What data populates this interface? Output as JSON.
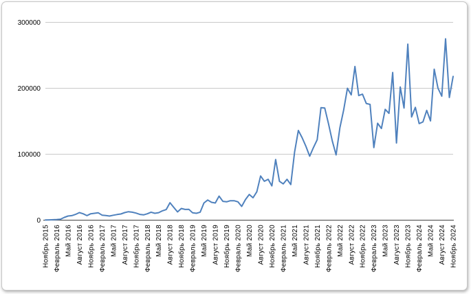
{
  "chart_data": {
    "type": "line",
    "title": "",
    "legend": null,
    "grid": true,
    "x_axis": {
      "tick_month_step": 3,
      "range": "Ноябрь 2015 — Ноябрь 2024",
      "tick_labels": [
        "Ноябрь 2015",
        "Февраль 2016",
        "Май 2016",
        "Август 2016",
        "Ноябрь 2016",
        "Февраль 2017",
        "Май 2017",
        "Август 2017",
        "Ноябрь 2017",
        "Февраль 2018",
        "Май 2018",
        "Август 2018",
        "Ноябрь 2018",
        "Февраль 2019",
        "Май 2019",
        "Август 2019",
        "Ноябрь 2019",
        "Февраль 2020",
        "Май 2020",
        "Август 2020",
        "Ноябрь 2020",
        "Февраль 2021",
        "Май 2021",
        "Август 2021",
        "Ноябрь 2021",
        "Февраль 2022",
        "Май 2022",
        "Август 2022",
        "Ноябрь 2022",
        "Февраль 2023",
        "Май 2023",
        "Август 2023",
        "Ноябрь 2023",
        "Февраль 2024",
        "Май 2024",
        "Август 2024",
        "Ноябрь 2024"
      ]
    },
    "y_axis": {
      "ticks": [
        0,
        100000,
        200000,
        300000
      ],
      "tick_labels": [
        "0",
        "100000",
        "200000",
        "300000"
      ],
      "ylim": [
        0,
        300000
      ]
    },
    "series": [
      {
        "name": "monthly-values",
        "color": "#4f81bd",
        "cadence": "monthly",
        "first_month": "2015-11",
        "last_month": "2024-11",
        "values": [
          200,
          400,
          600,
          900,
          1500,
          4200,
          6300,
          6900,
          8700,
          11500,
          9700,
          6900,
          9700,
          10400,
          11100,
          7600,
          7000,
          6200,
          7500,
          8500,
          9400,
          11500,
          12800,
          12100,
          10700,
          8700,
          8000,
          9700,
          12100,
          10400,
          11400,
          14200,
          16000,
          26500,
          19400,
          12500,
          17700,
          16200,
          16500,
          11100,
          10400,
          12100,
          26000,
          30500,
          27100,
          26000,
          36500,
          28500,
          27800,
          29500,
          29500,
          27800,
          20800,
          31200,
          39000,
          34000,
          43000,
          67000,
          59000,
          62000,
          52000,
          92000,
          59000,
          55000,
          62000,
          54000,
          103000,
          136000,
          125000,
          112000,
          97000,
          110000,
          122000,
          170500,
          170000,
          146000,
          120000,
          99000,
          140000,
          167000,
          200000,
          190000,
          233000,
          189000,
          191000,
          177000,
          175500,
          110000,
          147000,
          139000,
          168000,
          162000,
          224000,
          117000,
          202000,
          170000,
          267000,
          156500,
          171000,
          146500,
          149000,
          166500,
          150500,
          229000,
          200000,
          188000,
          275000,
          186000,
          218000
        ]
      }
    ]
  },
  "colors": {
    "line": "#4f81bd",
    "gridline": "#c9c9c9",
    "axis": "#404040",
    "text": "#000000",
    "card_border": "#c6c6c6",
    "background": "#ffffff"
  }
}
